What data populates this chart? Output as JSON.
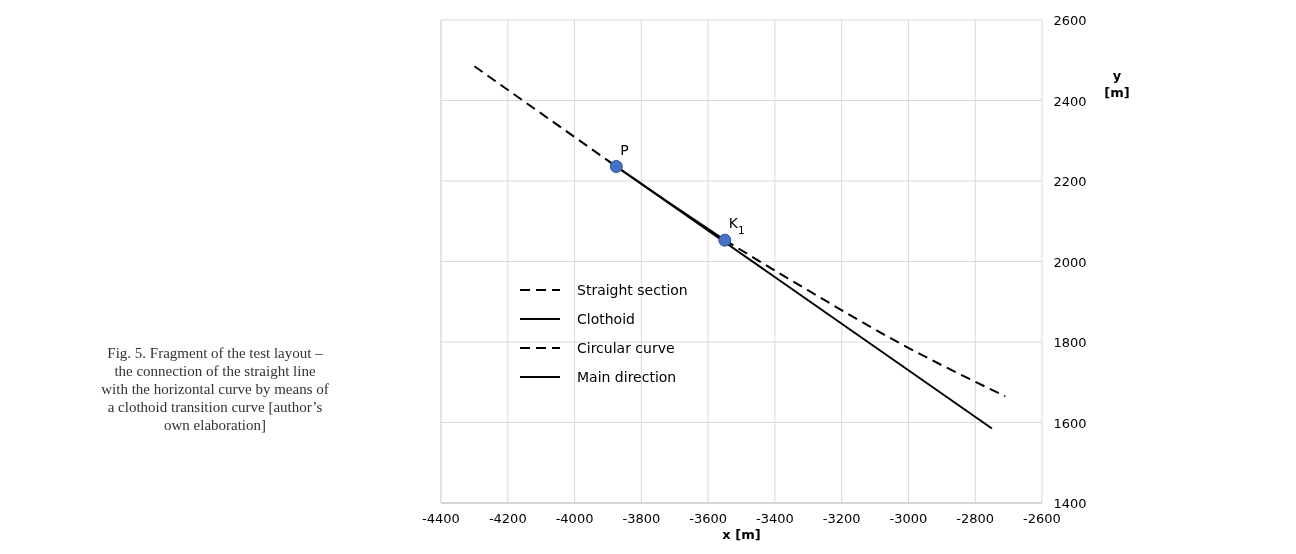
{
  "chart_data": {
    "type": "line",
    "xlabel": "x [m]",
    "ylabel": "y\n[m]",
    "xlim": [
      -4400,
      -2600
    ],
    "xticks": [
      -4400,
      -4200,
      -4000,
      -3800,
      -3600,
      -3400,
      -3200,
      -3000,
      -2800,
      -2600
    ],
    "ylim": [
      1400,
      2600
    ],
    "yticks": [
      1400,
      1600,
      1800,
      2000,
      2200,
      2400,
      2600
    ],
    "grid": true,
    "legend": "left",
    "series": [
      {
        "name": "Straight section",
        "color": "#000000",
        "line_style": "dashed",
        "x": [
          -4300,
          -3875
        ],
        "values": [
          2485,
          2236
        ]
      },
      {
        "name": "Clothoid",
        "color": "#000000",
        "line_style": "solid",
        "x": [
          -3875,
          -3710,
          -3550
        ],
        "values": [
          2236,
          2142,
          2053
        ]
      },
      {
        "name": "Circular curve",
        "color": "#000000",
        "line_style": "dashed",
        "x": [
          -3550,
          -3300,
          -3026,
          -2710
        ],
        "values": [
          2053,
          1928,
          1797,
          1665
        ]
      },
      {
        "name": "Main direction",
        "color": "#000000",
        "line_style": "solid",
        "x": [
          -3875,
          -2750
        ],
        "values": [
          2236,
          1585
        ]
      },
      {
        "type": "scatter",
        "color": "#4472c4",
        "marker": "circle",
        "x": [
          -3875,
          -3550
        ],
        "values": [
          2236,
          2053
        ]
      }
    ],
    "annotations": [
      {
        "text": "P",
        "x": -3875,
        "y": 2236
      },
      {
        "text": "K$_{1}$",
        "x": -3550,
        "y": 2053
      },
      "Fig. 5. Fragment of the test layout –\nthe connection of the straight line\nwith the horizontal curve by means of\na clothoid transition curve [author’s\nown elaboration]"
    ]
  }
}
